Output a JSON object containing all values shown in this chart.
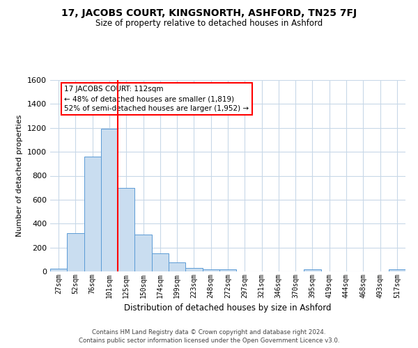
{
  "title": "17, JACOBS COURT, KINGSNORTH, ASHFORD, TN25 7FJ",
  "subtitle": "Size of property relative to detached houses in Ashford",
  "xlabel": "Distribution of detached houses by size in Ashford",
  "ylabel": "Number of detached properties",
  "bar_labels": [
    "27sqm",
    "52sqm",
    "76sqm",
    "101sqm",
    "125sqm",
    "150sqm",
    "174sqm",
    "199sqm",
    "223sqm",
    "248sqm",
    "272sqm",
    "297sqm",
    "321sqm",
    "346sqm",
    "370sqm",
    "395sqm",
    "419sqm",
    "444sqm",
    "468sqm",
    "493sqm",
    "517sqm"
  ],
  "bar_values": [
    25,
    320,
    960,
    1190,
    700,
    310,
    150,
    75,
    30,
    15,
    20,
    0,
    0,
    0,
    0,
    15,
    0,
    0,
    0,
    0,
    15
  ],
  "bar_color": "#c9ddf0",
  "bar_edge_color": "#5b9bd5",
  "ylim": [
    0,
    1600
  ],
  "yticks": [
    0,
    200,
    400,
    600,
    800,
    1000,
    1200,
    1400,
    1600
  ],
  "red_line_x": 3.5,
  "annotation_title": "17 JACOBS COURT: 112sqm",
  "annotation_line1": "← 48% of detached houses are smaller (1,819)",
  "annotation_line2": "52% of semi-detached houses are larger (1,952) →",
  "footer_line1": "Contains HM Land Registry data © Crown copyright and database right 2024.",
  "footer_line2": "Contains public sector information licensed under the Open Government Licence v3.0.",
  "background_color": "#ffffff",
  "grid_color": "#c8d8e8"
}
